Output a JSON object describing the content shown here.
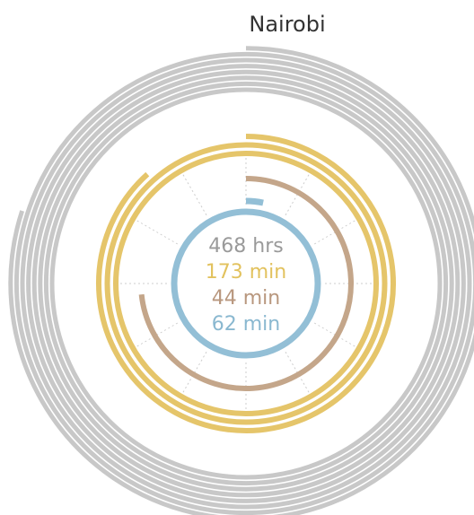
{
  "chart_data": {
    "type": "radial",
    "title": "Nairobi",
    "values": [
      468,
      173,
      44,
      62
    ],
    "value_labels": [
      "468 hrs",
      "173 min",
      "44 min",
      "62 min"
    ],
    "colors": [
      "#c8c8c8",
      "#e5c56a",
      "#c4a68a",
      "#93bfd6"
    ]
  }
}
